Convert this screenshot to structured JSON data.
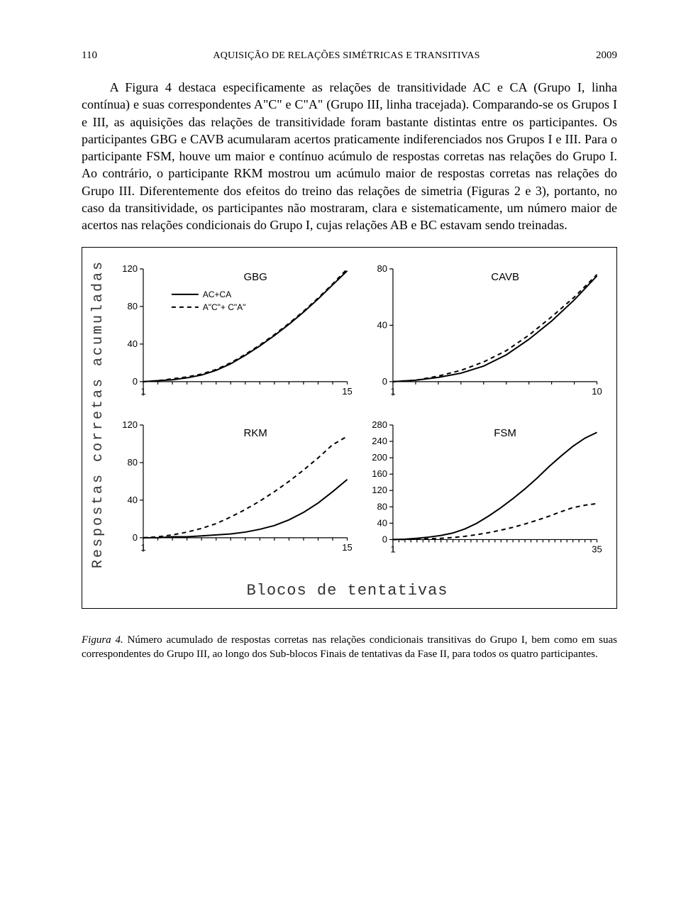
{
  "header": {
    "page_number": "110",
    "running_title": "AQUISIÇÃO DE RELAÇÕES SIMÉTRICAS E TRANSITIVAS",
    "year": "2009"
  },
  "paragraph": "A Figura 4 destaca especificamente as relações de transitividade AC e CA (Grupo I, linha contínua) e suas correspondentes A\"C\" e C\"A\" (Grupo III, linha tracejada). Comparando-se os Grupos I e III, as aquisições das relações de transitividade foram bastante distintas entre os participantes. Os participantes GBG e CAVB acumularam acertos praticamente indiferenciados nos Grupos I e III. Para o participante FSM, houve um maior e contínuo acúmulo de respostas corretas nas relações do Grupo I. Ao contrário, o participante RKM mostrou um acúmulo maior de respostas corretas nas relações do Grupo III. Diferentemente dos efeitos do treino das relações de simetria (Figuras 2 e 3), portanto, no caso da transitividade, os participantes não mostraram, clara e sistematicamente, um número maior de acertos nas relações condicionais do Grupo I, cujas relações AB e BC estavam sendo treinadas.",
  "figure": {
    "ylabel": "Respostas corretas acumuladas",
    "xlabel": "Blocos de tentativas",
    "legend": {
      "solid": "AC+CA",
      "dashed": "A\"C\"+ C\"A\""
    },
    "colors": {
      "axis": "#000000",
      "series": "#000000",
      "background": "#ffffff"
    },
    "line_width": 2,
    "panels": [
      {
        "id": "GBG",
        "title": "GBG",
        "xlim": [
          1,
          15
        ],
        "xticks": [
          1,
          15
        ],
        "ylim": [
          -15,
          120
        ],
        "yticks": [
          0,
          40,
          80,
          120
        ],
        "series_solid_x": [
          1,
          2,
          3,
          4,
          5,
          6,
          7,
          8,
          9,
          10,
          11,
          12,
          13,
          14,
          15
        ],
        "series_solid_y": [
          0,
          1,
          2,
          4,
          7,
          12,
          19,
          28,
          38,
          49,
          61,
          74,
          88,
          103,
          118
        ],
        "series_dashed_x": [
          1,
          2,
          3,
          4,
          5,
          6,
          7,
          8,
          9,
          10,
          11,
          12,
          13,
          14,
          15
        ],
        "series_dashed_y": [
          0,
          1,
          3,
          5,
          8,
          13,
          20,
          29,
          39,
          50,
          62,
          75,
          89,
          104,
          120
        ],
        "show_legend": true
      },
      {
        "id": "CAVB",
        "title": "CAVB",
        "xlim": [
          1,
          10
        ],
        "xticks": [
          1,
          10
        ],
        "ylim": [
          -10,
          80
        ],
        "yticks": [
          0,
          40,
          80
        ],
        "series_solid_x": [
          1,
          2,
          3,
          4,
          5,
          6,
          7,
          8,
          9,
          10
        ],
        "series_solid_y": [
          0,
          1,
          3,
          6,
          11,
          19,
          30,
          43,
          58,
          75
        ],
        "series_dashed_x": [
          1,
          2,
          3,
          4,
          5,
          6,
          7,
          8,
          9,
          10
        ],
        "series_dashed_y": [
          0,
          1,
          4,
          8,
          14,
          22,
          33,
          46,
          60,
          76
        ],
        "show_legend": false
      },
      {
        "id": "RKM",
        "title": "RKM",
        "xlim": [
          1,
          15
        ],
        "xticks": [
          1,
          15
        ],
        "ylim": [
          -15,
          120
        ],
        "yticks": [
          0,
          40,
          80,
          120
        ],
        "series_solid_x": [
          1,
          2,
          3,
          4,
          5,
          6,
          7,
          8,
          9,
          10,
          11,
          12,
          13,
          14,
          15
        ],
        "series_solid_y": [
          0,
          0,
          1,
          1,
          2,
          3,
          4,
          6,
          9,
          13,
          19,
          27,
          37,
          49,
          62
        ],
        "series_dashed_x": [
          1,
          2,
          3,
          4,
          5,
          6,
          7,
          8,
          9,
          10,
          11,
          12,
          13,
          14,
          15
        ],
        "series_dashed_y": [
          0,
          1,
          3,
          6,
          10,
          15,
          22,
          30,
          39,
          49,
          60,
          72,
          85,
          99,
          108
        ],
        "show_legend": false
      },
      {
        "id": "FSM",
        "title": "FSM",
        "xlim": [
          1,
          35
        ],
        "xticks": [
          1,
          35
        ],
        "ylim": [
          -30,
          280
        ],
        "yticks": [
          0,
          40,
          80,
          120,
          160,
          200,
          240,
          280
        ],
        "series_solid_x": [
          1,
          3,
          5,
          7,
          9,
          11,
          13,
          15,
          17,
          19,
          21,
          23,
          25,
          27,
          29,
          31,
          33,
          35
        ],
        "series_solid_y": [
          0,
          1,
          3,
          6,
          10,
          16,
          26,
          40,
          58,
          78,
          100,
          124,
          150,
          178,
          204,
          228,
          248,
          262
        ],
        "series_dashed_x": [
          1,
          3,
          5,
          7,
          9,
          11,
          13,
          15,
          17,
          19,
          21,
          23,
          25,
          27,
          29,
          31,
          33,
          35
        ],
        "series_dashed_y": [
          0,
          0,
          1,
          2,
          3,
          5,
          8,
          12,
          17,
          23,
          30,
          38,
          47,
          57,
          68,
          78,
          84,
          88
        ],
        "show_legend": false
      }
    ]
  },
  "caption": {
    "figno": "Figura 4.",
    "text": " Número acumulado de respostas corretas nas relações condicionais transitivas do Grupo I, bem como em suas correspondentes do Grupo III, ao longo dos Sub-blocos Finais de tentativas da Fase II, para todos os quatro participantes."
  }
}
